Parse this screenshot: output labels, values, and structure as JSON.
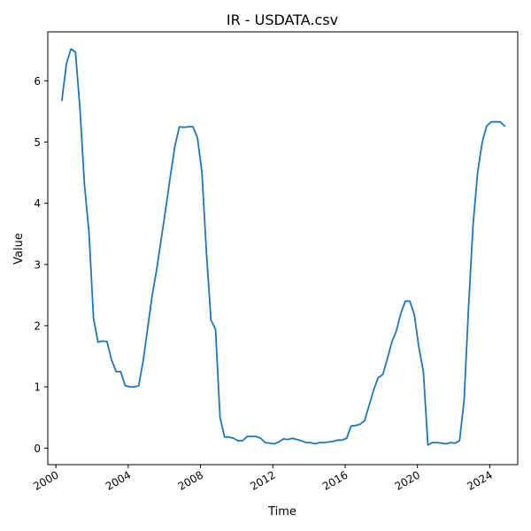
{
  "chart_data": {
    "type": "line",
    "title": "IR - USDATA.csv",
    "xlabel": "Time",
    "ylabel": "Value",
    "xlim": [
      1999.55,
      2025.55
    ],
    "ylim": [
      -0.27,
      6.8
    ],
    "x_ticks": [
      2000,
      2004,
      2008,
      2012,
      2016,
      2020,
      2024
    ],
    "y_ticks": [
      0,
      1,
      2,
      3,
      4,
      5,
      6
    ],
    "grid": false,
    "legend": "none",
    "line_color": "#1f77b4",
    "series": [
      {
        "x": [
          2000.33,
          2000.58,
          2000.83,
          2001.08,
          2001.33,
          2001.58,
          2001.83,
          2002.08,
          2002.33,
          2002.58,
          2002.83,
          2003.08,
          2003.33,
          2003.58,
          2003.83,
          2004.08,
          2004.33,
          2004.58,
          2004.83,
          2005.08,
          2005.33,
          2005.58,
          2005.83,
          2006.08,
          2006.33,
          2006.58,
          2006.83,
          2007.08,
          2007.33,
          2007.58,
          2007.83,
          2008.08,
          2008.33,
          2008.58,
          2008.83,
          2009.08,
          2009.33,
          2009.58,
          2009.83,
          2010.08,
          2010.33,
          2010.58,
          2010.83,
          2011.08,
          2011.33,
          2011.58,
          2011.83,
          2012.08,
          2012.33,
          2012.58,
          2012.83,
          2013.08,
          2013.33,
          2013.58,
          2013.83,
          2014.08,
          2014.33,
          2014.58,
          2014.83,
          2015.08,
          2015.33,
          2015.58,
          2015.83,
          2016.08,
          2016.33,
          2016.58,
          2016.83,
          2017.08,
          2017.33,
          2017.58,
          2017.83,
          2018.08,
          2018.33,
          2018.58,
          2018.83,
          2019.08,
          2019.33,
          2019.58,
          2019.83,
          2020.08,
          2020.33,
          2020.58,
          2020.83,
          2021.08,
          2021.33,
          2021.58,
          2021.83,
          2022.08,
          2022.33,
          2022.58,
          2022.83,
          2023.08,
          2023.33,
          2023.58,
          2023.83,
          2024.08,
          2024.33,
          2024.58,
          2024.83
        ],
        "y": [
          5.68,
          6.28,
          6.52,
          6.47,
          5.55,
          4.3,
          3.52,
          2.12,
          1.73,
          1.75,
          1.74,
          1.44,
          1.25,
          1.25,
          1.02,
          1.0,
          1.0,
          1.02,
          1.43,
          1.97,
          2.5,
          2.93,
          3.42,
          3.92,
          4.44,
          4.93,
          5.25,
          5.24,
          5.25,
          5.25,
          5.07,
          4.5,
          3.18,
          2.09,
          1.94,
          0.5,
          0.18,
          0.18,
          0.16,
          0.12,
          0.12,
          0.19,
          0.19,
          0.19,
          0.16,
          0.09,
          0.08,
          0.07,
          0.1,
          0.15,
          0.14,
          0.16,
          0.14,
          0.12,
          0.09,
          0.09,
          0.07,
          0.09,
          0.09,
          0.1,
          0.11,
          0.13,
          0.13,
          0.16,
          0.36,
          0.37,
          0.39,
          0.45,
          0.7,
          0.95,
          1.15,
          1.2,
          1.45,
          1.73,
          1.91,
          2.2,
          2.4,
          2.4,
          2.18,
          1.65,
          1.25,
          0.05,
          0.09,
          0.09,
          0.08,
          0.07,
          0.09,
          0.08,
          0.12,
          0.77,
          2.3,
          3.65,
          4.5,
          4.99,
          5.26,
          5.33,
          5.33,
          5.33,
          5.26
        ]
      }
    ]
  }
}
